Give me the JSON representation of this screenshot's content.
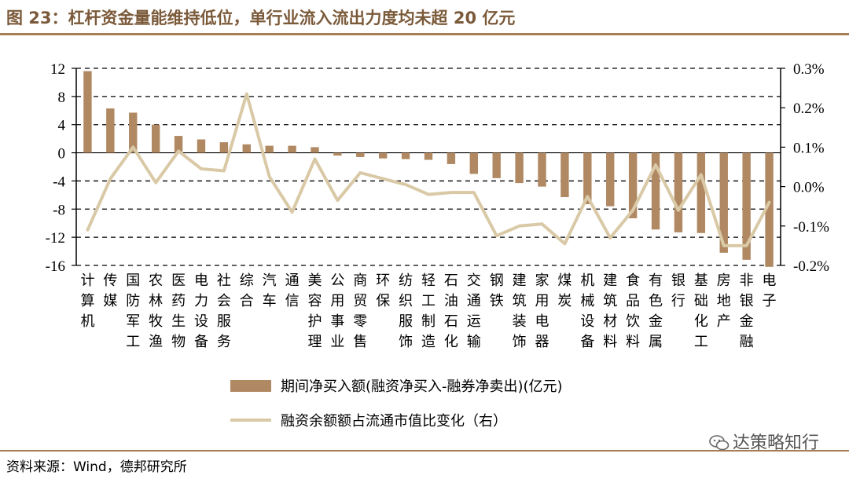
{
  "header": {
    "title": "图 23：杠杆资金量能维持低位，单行业流入流出力度均未超 20 亿元"
  },
  "footer": {
    "source": "资料来源：Wind，德邦研究所",
    "watermark": "达策略知行"
  },
  "colors": {
    "bar": "#b08963",
    "line": "#d9c9a6",
    "title": "#7b5a3a",
    "rule": "#a87c55"
  },
  "chart_data": {
    "type": "bar",
    "categories": [
      "计算机",
      "传媒",
      "国防军工",
      "农林牧渔",
      "医药生物",
      "电力设备",
      "社会服务",
      "综合",
      "汽车",
      "通信",
      "美容护理",
      "公用事业",
      "商贸零售",
      "环保",
      "纺织服饰",
      "轻工制造",
      "石油石化",
      "交通运输",
      "钢铁",
      "建筑装饰",
      "家用电器",
      "煤炭",
      "机械设备",
      "建筑材料",
      "食品饮料",
      "有色金属",
      "银行",
      "基础化工",
      "房地产",
      "非银金融",
      "电子"
    ],
    "category_lines": [
      [
        "计",
        "算",
        "机"
      ],
      [
        "传",
        "媒"
      ],
      [
        "国",
        "防",
        "军",
        "工"
      ],
      [
        "农",
        "林",
        "牧",
        "渔"
      ],
      [
        "医",
        "药",
        "生",
        "物"
      ],
      [
        "电",
        "力",
        "设",
        "备"
      ],
      [
        "社",
        "会",
        "服",
        "务"
      ],
      [
        "综",
        "合"
      ],
      [
        "汽",
        "车"
      ],
      [
        "通",
        "信"
      ],
      [
        "美",
        "容",
        "护",
        "理"
      ],
      [
        "公",
        "用",
        "事",
        "业"
      ],
      [
        "商",
        "贸",
        "零",
        "售"
      ],
      [
        "环",
        "保"
      ],
      [
        "纺",
        "织",
        "服",
        "饰"
      ],
      [
        "轻",
        "工",
        "制",
        "造"
      ],
      [
        "石",
        "油",
        "石",
        "化"
      ],
      [
        "交",
        "通",
        "运",
        "输"
      ],
      [
        "钢",
        "铁"
      ],
      [
        "建",
        "筑",
        "装",
        "饰"
      ],
      [
        "家",
        "用",
        "电",
        "器"
      ],
      [
        "煤",
        "炭"
      ],
      [
        "机",
        "械",
        "设",
        "备"
      ],
      [
        "建",
        "筑",
        "材",
        "料"
      ],
      [
        "食",
        "品",
        "饮",
        "料"
      ],
      [
        "有",
        "色",
        "金",
        "属"
      ],
      [
        "银",
        "行"
      ],
      [
        "基",
        "础",
        "化",
        "工"
      ],
      [
        "房",
        "地",
        "产"
      ],
      [
        "非",
        "银",
        "金",
        "融"
      ],
      [
        "电",
        "子"
      ]
    ],
    "series": [
      {
        "name": "期间净买入额(融资净买入-融券净卖出)(亿元)",
        "axis": "left",
        "values": [
          11.6,
          6.3,
          5.7,
          4.0,
          2.4,
          1.9,
          1.5,
          1.2,
          1.0,
          1.0,
          0.8,
          -0.4,
          -0.6,
          -0.8,
          -0.9,
          -1.0,
          -1.6,
          -3.0,
          -3.6,
          -4.3,
          -4.8,
          -6.3,
          -7.3,
          -7.6,
          -9.3,
          -10.9,
          -11.3,
          -11.4,
          -14.2,
          -15.2,
          -16.2
        ]
      },
      {
        "name": "融资余额额占流通市值比变化（右）",
        "axis": "right",
        "values": [
          -0.11,
          0.02,
          0.1,
          0.01,
          0.09,
          0.045,
          0.04,
          0.235,
          0.025,
          -0.065,
          0.07,
          -0.035,
          0.035,
          0.02,
          0.005,
          -0.02,
          -0.015,
          -0.015,
          -0.125,
          -0.1,
          -0.095,
          -0.145,
          -0.025,
          -0.13,
          -0.06,
          0.055,
          -0.06,
          0.03,
          -0.15,
          -0.15,
          -0.04
        ]
      }
    ],
    "legend": [
      "期间净买入额(融资净买入-融券净卖出)(亿元)",
      "融资余额额占流通市值比变化（右）"
    ],
    "ylim": [
      -16,
      12
    ],
    "yticks": [
      "12",
      "8",
      "4",
      "0",
      "-4",
      "-8",
      "-12",
      "-16"
    ],
    "y2lim": [
      -0.2,
      0.3
    ],
    "y2ticks": [
      "0.3%",
      "0.2%",
      "0.1%",
      "0.0%",
      "-0.1%",
      "-0.2%"
    ],
    "grid": "horizontal dashed",
    "legend_position": "bottom"
  }
}
